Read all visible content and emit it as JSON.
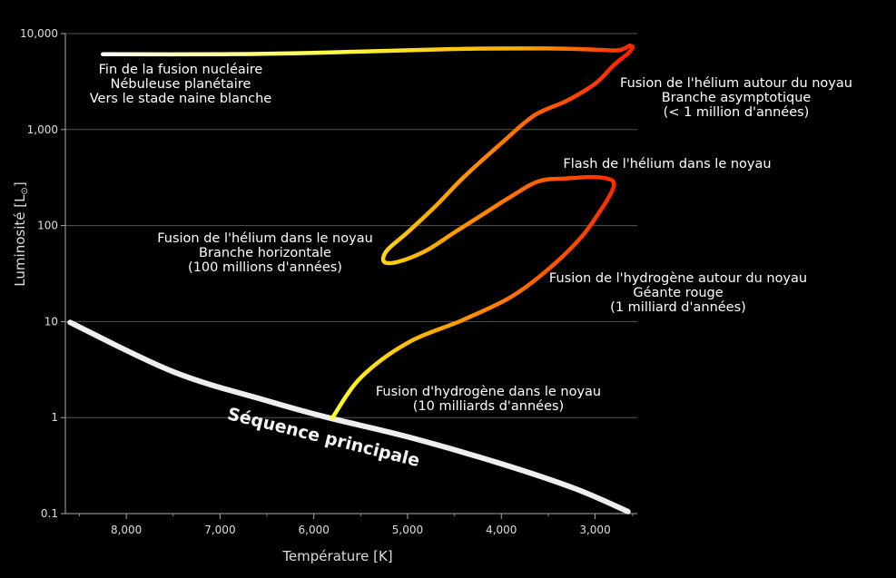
{
  "chart_data": {
    "type": "line",
    "title": "",
    "xlabel": "Température [K]",
    "ylabel_text": "Luminosité [L",
    "ylabel_sub": "⊙",
    "ylabel_close": "]",
    "x_reversed": true,
    "xlim": [
      8650,
      2550
    ],
    "ylim": [
      0.1,
      10000
    ],
    "yscale": "log",
    "grid": "horizontal",
    "x_ticks": [
      {
        "value": 8000,
        "label": "8,000"
      },
      {
        "value": 7000,
        "label": "7,000"
      },
      {
        "value": 6000,
        "label": "6,000"
      },
      {
        "value": 5000,
        "label": "5,000"
      },
      {
        "value": 4000,
        "label": "4,000"
      },
      {
        "value": 3000,
        "label": "3,000"
      }
    ],
    "y_ticks": [
      {
        "value": 0.1,
        "label": "0.1"
      },
      {
        "value": 1,
        "label": "1"
      },
      {
        "value": 10,
        "label": "10"
      },
      {
        "value": 100,
        "label": "100"
      },
      {
        "value": 1000,
        "label": "1,000"
      },
      {
        "value": 10000,
        "label": "10,000"
      }
    ],
    "series": [
      {
        "id": "main-sequence",
        "color": "#eeeeee",
        "points": [
          [
            8600,
            9.8
          ],
          [
            7500,
            3.0
          ],
          [
            6500,
            1.5
          ],
          [
            5850,
            1.0
          ],
          [
            5000,
            0.63
          ],
          [
            4000,
            0.33
          ],
          [
            3200,
            0.18
          ],
          [
            2650,
            0.105
          ]
        ]
      },
      {
        "id": "evolution-track",
        "gradient": [
          "#ffff22",
          "#ffaa00",
          "#ff6600",
          "#ff2200"
        ],
        "points": [
          [
            5800,
            1.0
          ],
          [
            5500,
            2.6
          ],
          [
            5000,
            6.0
          ],
          [
            4400,
            10.5
          ],
          [
            3900,
            18
          ],
          [
            3500,
            35
          ],
          [
            3150,
            75
          ],
          [
            2950,
            140
          ],
          [
            2850,
            200
          ],
          [
            2800,
            260
          ],
          [
            2830,
            300
          ],
          [
            3000,
            320
          ],
          [
            3300,
            310
          ],
          [
            3600,
            290
          ],
          [
            3900,
            200
          ],
          [
            4200,
            130
          ],
          [
            4500,
            85
          ],
          [
            4800,
            55
          ],
          [
            5100,
            42
          ],
          [
            5250,
            42
          ],
          [
            5220,
            55
          ],
          [
            5000,
            85
          ],
          [
            4700,
            160
          ],
          [
            4400,
            320
          ],
          [
            4000,
            720
          ],
          [
            3650,
            1400
          ],
          [
            3300,
            2000
          ],
          [
            3000,
            3000
          ],
          [
            2800,
            4700
          ],
          [
            2650,
            6200
          ],
          [
            2600,
            7200
          ],
          [
            2630,
            7500
          ],
          [
            2750,
            6700
          ],
          [
            3000,
            6800
          ],
          [
            3500,
            7000
          ],
          [
            4500,
            6900
          ],
          [
            6000,
            6300
          ],
          [
            7000,
            6100
          ],
          [
            8250,
            6100
          ]
        ]
      }
    ],
    "annotations": [
      {
        "id": "annotation-end-of-fusion",
        "lines": [
          "Fin de la fusion nucléaire",
          "Nébuleuse planétaire",
          "Vers le stade naine blanche"
        ]
      },
      {
        "id": "annotation-agb",
        "lines": [
          "Fusion de l'hélium autour du noyau",
          "Branche asymptotique",
          "(< 1 million d'années)"
        ]
      },
      {
        "id": "annotation-helium-flash",
        "lines": [
          "Flash de l'hélium dans le noyau"
        ]
      },
      {
        "id": "annotation-horizontal-branch",
        "lines": [
          "Fusion de l'hélium dans le noyau",
          "Branche horizontale",
          "(100 millions d'années)"
        ]
      },
      {
        "id": "annotation-red-giant",
        "lines": [
          "Fusion de l'hydrogène autour du noyau",
          "Géante rouge",
          "(1 milliard d'années)"
        ]
      },
      {
        "id": "annotation-core-hydrogen",
        "lines": [
          "Fusion d'hydrogène dans le noyau",
          "(10 milliards d'années)"
        ]
      }
    ],
    "main_sequence_label": "Séquence principale"
  }
}
